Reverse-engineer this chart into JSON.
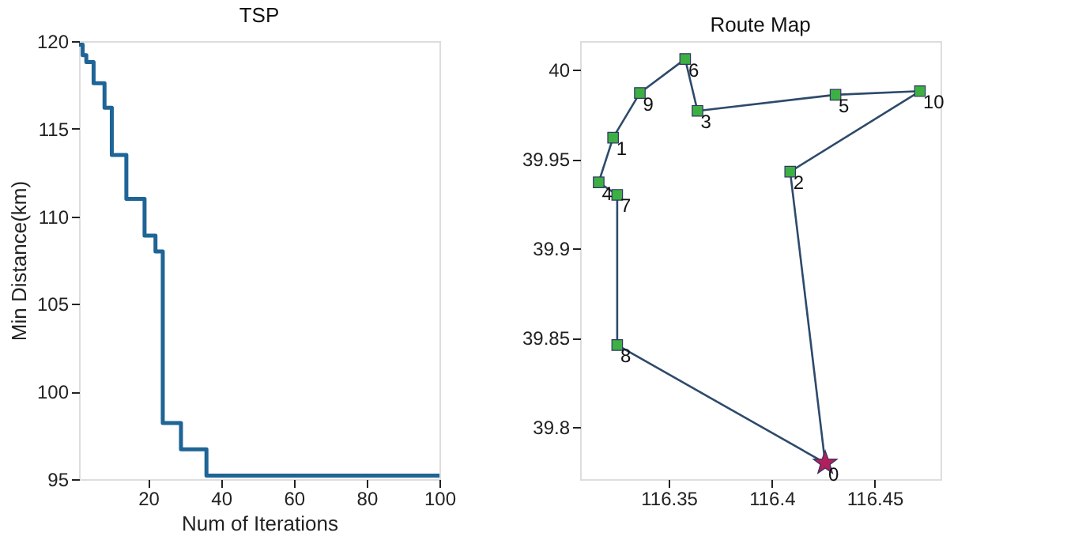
{
  "chart_data": [
    {
      "type": "step",
      "title": "TSP",
      "xlabel": "Num of Iterations",
      "ylabel": "Min Distance(km)",
      "color": "#1f6496",
      "x": [
        1,
        2,
        3,
        5,
        8,
        10,
        14,
        19,
        22,
        24,
        29,
        36,
        100
      ],
      "values": [
        119.8,
        119.2,
        118.8,
        117.6,
        116.2,
        113.5,
        111.0,
        108.9,
        108.0,
        98.2,
        96.7,
        95.2,
        95.2
      ],
      "xlim": [
        1,
        100
      ],
      "xticks": [
        20,
        40,
        60,
        80,
        100
      ],
      "ylim": [
        95,
        120
      ],
      "yticks": [
        95,
        100,
        105,
        110,
        115,
        120
      ],
      "grid": false,
      "line_style": "solid"
    },
    {
      "type": "line",
      "title": "Route Map",
      "series": [
        {
          "type": "line",
          "color": "#2e4a6b",
          "x": [
            116.426,
            116.409
          ],
          "values": [
            39.78,
            39.943
          ]
        },
        {
          "type": "line",
          "color": "#2e4a6b",
          "x": [
            116.409,
            116.472
          ],
          "values": [
            39.943,
            39.988
          ]
        },
        {
          "type": "line",
          "color": "#2e4a6b",
          "x": [
            116.472,
            116.431
          ],
          "values": [
            39.988,
            39.986
          ]
        },
        {
          "type": "line",
          "color": "#2e4a6b",
          "x": [
            116.431,
            116.364
          ],
          "values": [
            39.986,
            39.977
          ]
        },
        {
          "type": "line",
          "color": "#2e4a6b",
          "x": [
            116.364,
            116.358
          ],
          "values": [
            39.977,
            40.006
          ]
        },
        {
          "type": "line",
          "color": "#2e4a6b",
          "x": [
            116.358,
            116.336
          ],
          "values": [
            40.006,
            39.987
          ]
        },
        {
          "type": "line",
          "color": "#2e4a6b",
          "x": [
            116.336,
            116.323
          ],
          "values": [
            39.987,
            39.962
          ]
        },
        {
          "type": "line",
          "color": "#2e4a6b",
          "x": [
            116.323,
            116.316
          ],
          "values": [
            39.962,
            39.937
          ]
        },
        {
          "type": "line",
          "color": "#2e4a6b",
          "x": [
            116.316,
            116.325
          ],
          "values": [
            39.937,
            39.93
          ]
        },
        {
          "type": "line",
          "color": "#2e4a6b",
          "x": [
            116.325,
            116.325
          ],
          "values": [
            39.93,
            39.846
          ]
        },
        {
          "type": "line",
          "color": "#2e4a6b",
          "x": [
            116.325,
            116.426
          ],
          "values": [
            39.846,
            39.78
          ]
        },
        {
          "type": "scatter",
          "color": "#3cb043",
          "marker": "square",
          "x": [
            116.409,
            116.472,
            116.431,
            116.364,
            116.358,
            116.336,
            116.323,
            116.316,
            116.325,
            116.325
          ],
          "values": [
            39.943,
            39.988,
            39.986,
            39.977,
            40.006,
            39.987,
            39.962,
            39.937,
            39.93,
            39.846
          ]
        },
        {
          "type": "scatter",
          "color": "#b0205a",
          "marker": "star",
          "x": [
            116.426
          ],
          "values": [
            39.78
          ]
        }
      ],
      "annotations": [
        {
          "text": "0",
          "x": 116.426,
          "y": 39.78
        },
        {
          "text": "1",
          "x": 116.323,
          "y": 39.962
        },
        {
          "text": "2",
          "x": 116.409,
          "y": 39.943
        },
        {
          "text": "3",
          "x": 116.364,
          "y": 39.977
        },
        {
          "text": "4",
          "x": 116.316,
          "y": 39.937
        },
        {
          "text": "5",
          "x": 116.431,
          "y": 39.986
        },
        {
          "text": "6",
          "x": 116.358,
          "y": 40.006
        },
        {
          "text": "7",
          "x": 116.325,
          "y": 39.93
        },
        {
          "text": "8",
          "x": 116.325,
          "y": 39.846
        },
        {
          "text": "9",
          "x": 116.336,
          "y": 39.987
        },
        {
          "text": "10",
          "x": 116.472,
          "y": 39.988
        }
      ],
      "xlim": [
        116.307,
        116.482
      ],
      "xticks": [
        116.35,
        116.4,
        116.45
      ],
      "ylim": [
        39.771,
        40.016
      ],
      "yticks": [
        39.8,
        39.85,
        39.9,
        39.95,
        40
      ],
      "grid": false
    }
  ]
}
